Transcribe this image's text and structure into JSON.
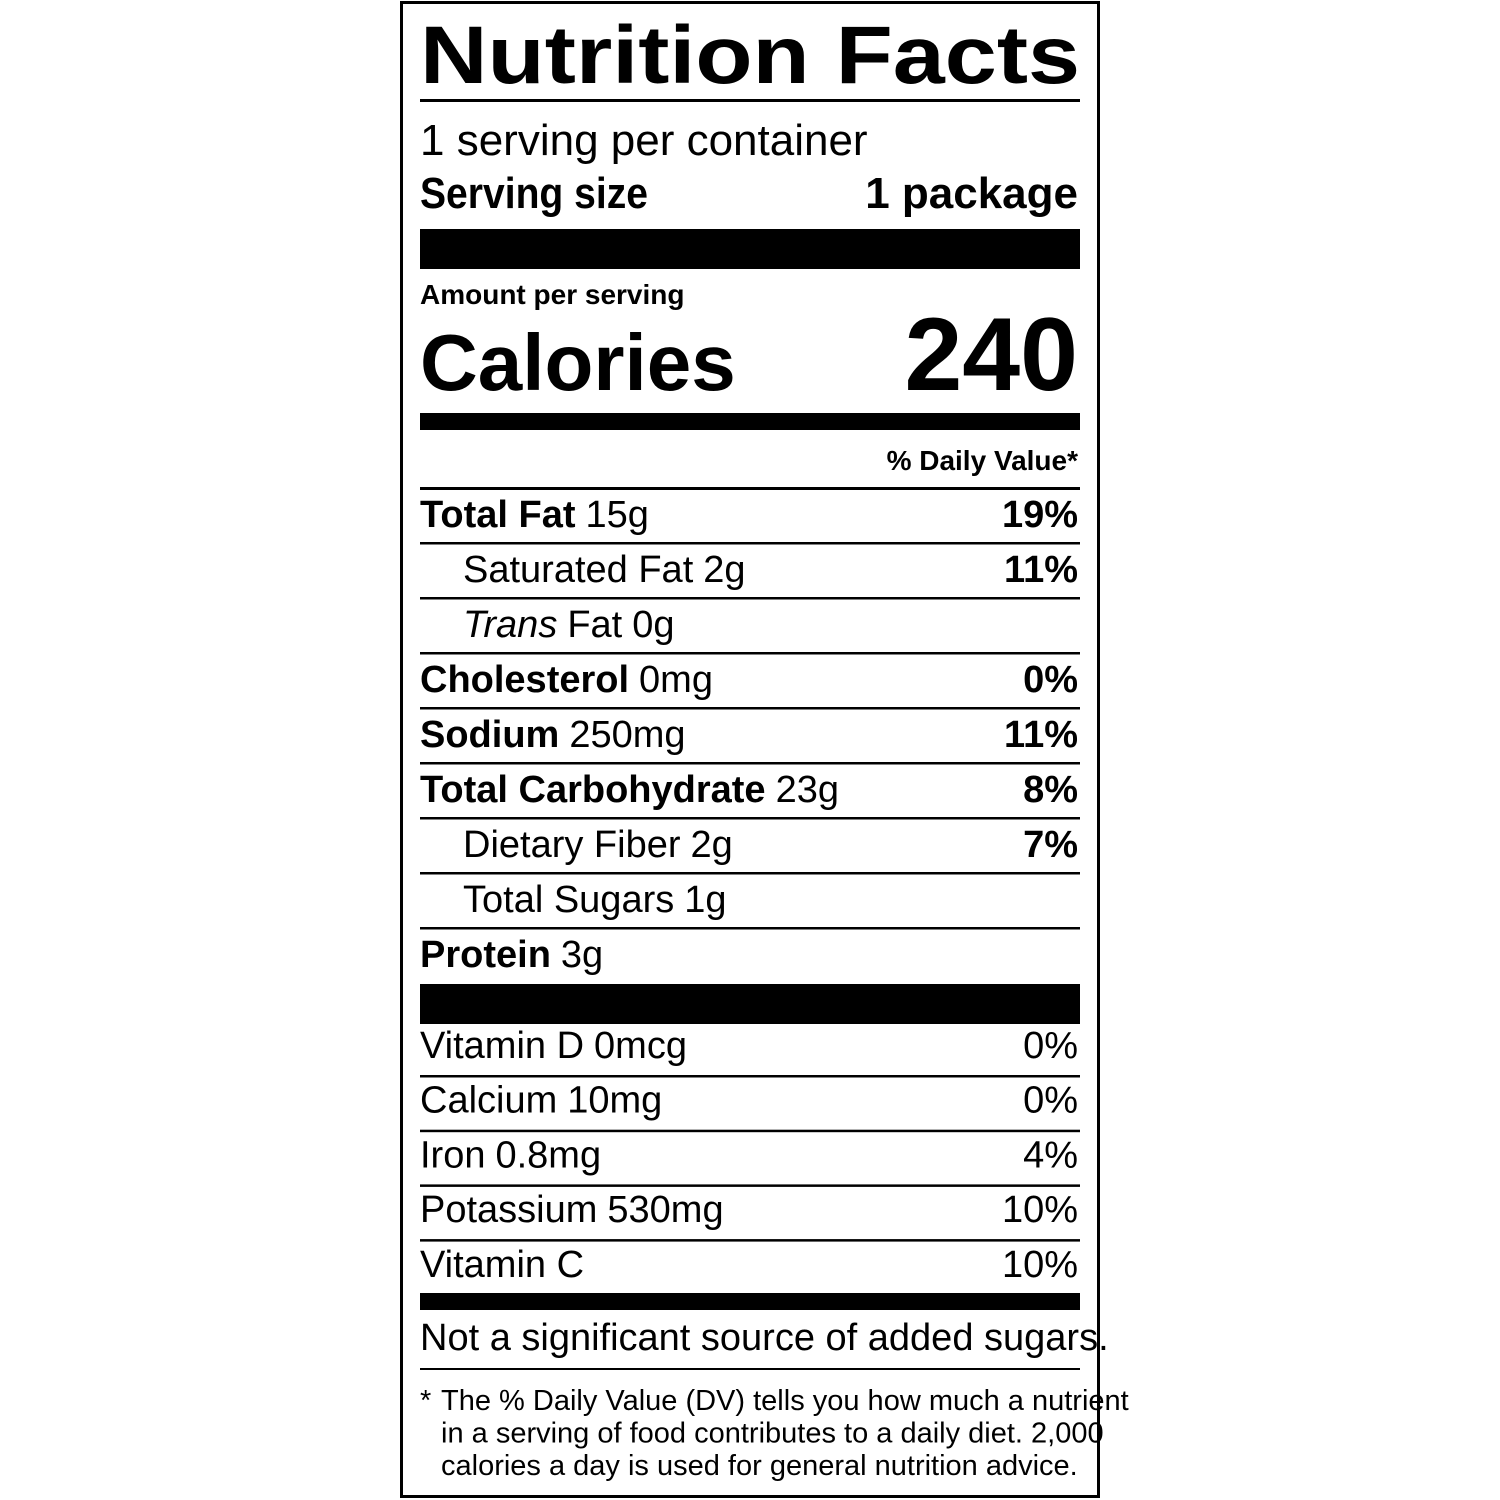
{
  "title": "Nutrition Facts",
  "servings_per_container": "1 serving per container",
  "serving_size": {
    "label": "Serving size",
    "value": "1 package"
  },
  "amount_per_serving": "Amount per serving",
  "calories": {
    "label": "Calories",
    "value": 240
  },
  "daily_value_header": "% Daily Value*",
  "nutrients": [
    {
      "name": "Total Fat",
      "amount": "15g",
      "dv": "19%",
      "bold": true,
      "indent": false
    },
    {
      "name": "Saturated Fat",
      "amount": "2g",
      "dv": "11%",
      "bold": false,
      "indent": true
    },
    {
      "italic": "Trans",
      "name": "Fat",
      "amount": "0g",
      "bold": false,
      "indent": true
    },
    {
      "name": "Cholesterol",
      "amount": "0mg",
      "dv": "0%",
      "bold": true,
      "indent": false
    },
    {
      "name": "Sodium",
      "amount": "250mg",
      "dv": "11%",
      "bold": true,
      "indent": false
    },
    {
      "name": "Total Carbohydrate",
      "amount": "23g",
      "dv": "8%",
      "bold": true,
      "indent": false
    },
    {
      "name": "Dietary Fiber",
      "amount": "2g",
      "dv": "7%",
      "bold": false,
      "indent": true
    },
    {
      "name": "Total Sugars",
      "amount": "1g",
      "bold": false,
      "indent": true
    },
    {
      "name": "Protein",
      "amount": "3g",
      "bold": true,
      "indent": false
    }
  ],
  "vitamins": [
    {
      "name": "Vitamin D",
      "amount": "0mcg",
      "dv": "0%"
    },
    {
      "name": "Calcium",
      "amount": "10mg",
      "dv": "0%"
    },
    {
      "name": "Iron",
      "amount": "0.8mg",
      "dv": "4%"
    },
    {
      "name": "Potassium",
      "amount": "530mg",
      "dv": "10%"
    },
    {
      "name": "Vitamin C",
      "dv": "10%"
    }
  ],
  "added_sugars_note": "Not a significant source of added sugars.",
  "footnote": {
    "marker": "*",
    "lines": [
      "The % Daily Value (DV) tells you how much a nutrient",
      "in a serving of food contributes to a daily diet. 2,000",
      "calories a day is used for general nutrition advice."
    ]
  }
}
